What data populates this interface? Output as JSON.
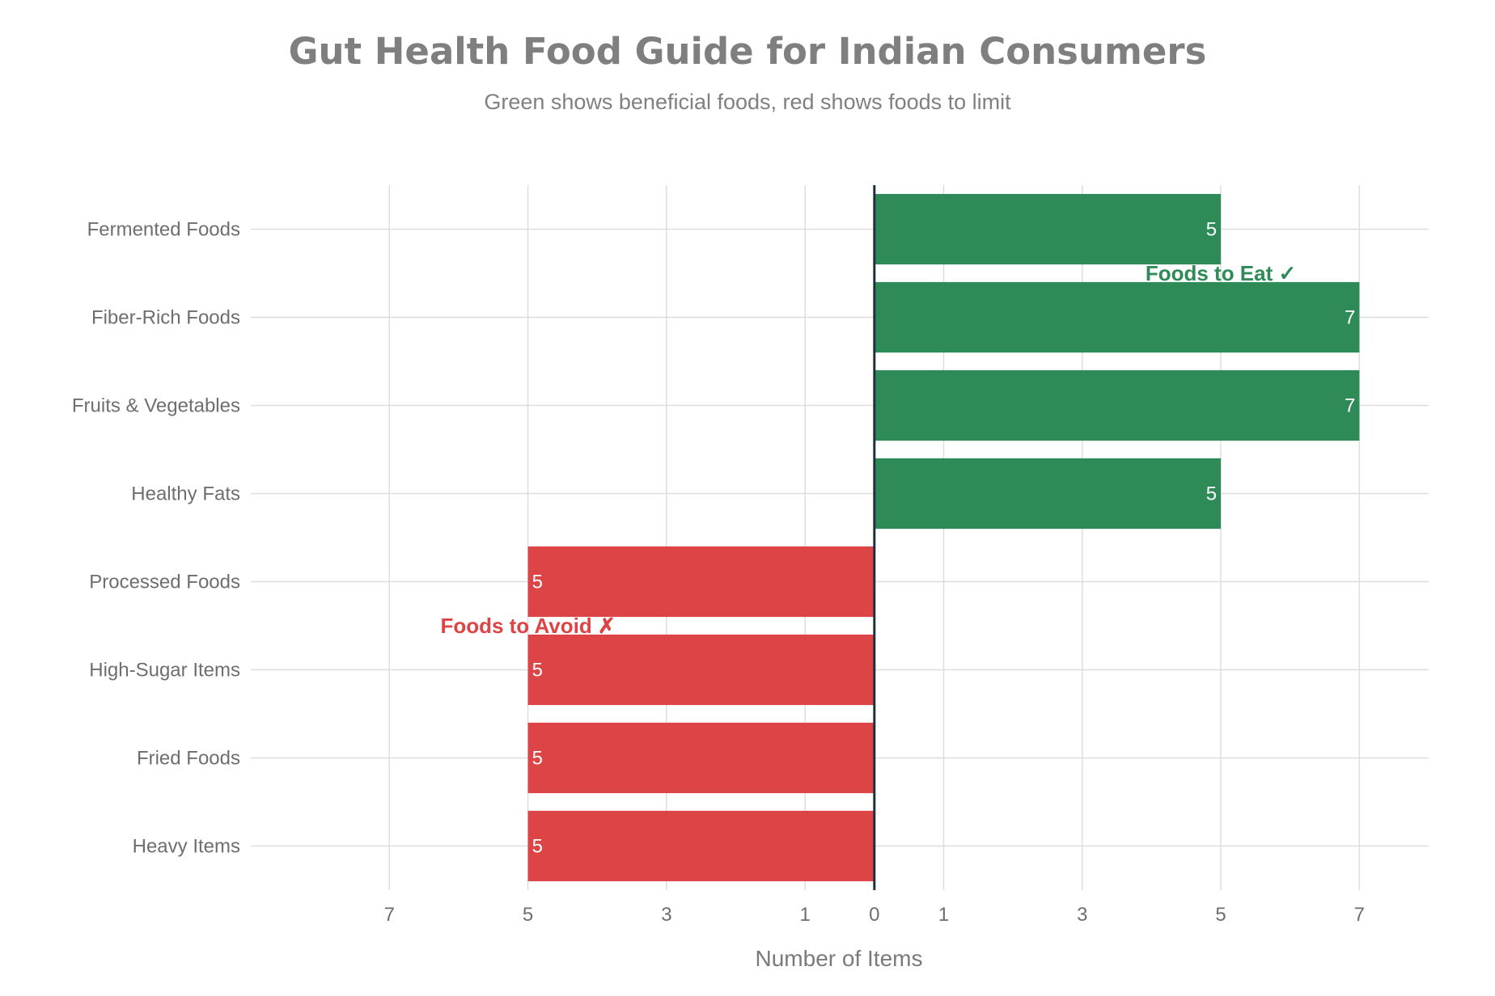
{
  "colors": {
    "eat": "#2e8b57",
    "avoid": "#dc4446",
    "grid": "#dddddd",
    "zero_line": "#1f2f3f"
  },
  "chart_data": {
    "type": "bar",
    "orientation": "horizontal",
    "title": "Gut Health Food Guide for Indian Consumers",
    "subtitle": "Green shows beneficial foods, red shows foods to limit",
    "xlabel": "Number of Items",
    "ylabel": "",
    "xlim": [
      -9,
      8
    ],
    "xticks": [
      -7,
      -5,
      -3,
      -1,
      0,
      1,
      3,
      5,
      7
    ],
    "xtick_labels": [
      "7",
      "5",
      "3",
      "1",
      "0",
      "1",
      "3",
      "5",
      "7"
    ],
    "grid": true,
    "legend": "none",
    "categories": [
      "Fermented Foods",
      "Fiber-Rich Foods",
      "Fruits & Vegetables",
      "Healthy Fats",
      "Processed Foods",
      "High-Sugar Items",
      "Fried Foods",
      "Heavy Items"
    ],
    "values": [
      5,
      7,
      7,
      5,
      -5,
      -5,
      -5,
      -5
    ],
    "data_labels": [
      "5",
      "7",
      "7",
      "5",
      "5",
      "5",
      "5",
      "5"
    ],
    "groups": [
      "eat",
      "eat",
      "eat",
      "eat",
      "avoid",
      "avoid",
      "avoid",
      "avoid"
    ],
    "annotations": [
      {
        "text": "Foods to Eat ✓",
        "group": "eat"
      },
      {
        "text": "Foods to Avoid ✗",
        "group": "avoid"
      }
    ]
  }
}
